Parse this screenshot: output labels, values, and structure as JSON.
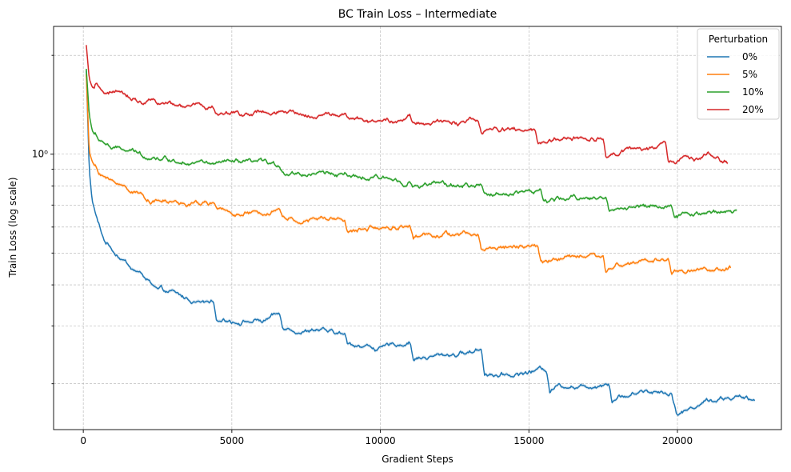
{
  "chart_data": {
    "type": "line",
    "title": "BC Train Loss – Intermediate",
    "xlabel": "Gradient Steps",
    "ylabel": "Train Loss (log scale)",
    "yscale": "log",
    "xlim": [
      -1000,
      23500
    ],
    "ylim": [
      0.145,
      2.45
    ],
    "x_ticks": [
      0,
      5000,
      10000,
      15000,
      20000
    ],
    "x_tick_labels": [
      "0",
      "5000",
      "10000",
      "15000",
      "20000"
    ],
    "y_major_ticks": [
      1.0
    ],
    "y_major_tick_labels": [
      "10⁰"
    ],
    "y_minor_ticks": [
      0.2,
      0.3,
      0.4,
      0.5,
      0.6,
      0.7,
      0.8,
      0.9,
      2.0
    ],
    "grid": true,
    "legend": {
      "title": "Perturbation",
      "placement": "top-right",
      "entries": [
        "0%",
        "5%",
        "10%",
        "20%"
      ]
    },
    "series": [
      {
        "name": "0%",
        "color": "#1f77b4",
        "x": [
          100,
          200,
          300,
          500,
          700,
          1000,
          1500,
          2000,
          2300,
          2500,
          3000,
          3500,
          4000,
          4400,
          4500,
          5000,
          5500,
          6000,
          6600,
          6700,
          7000,
          7500,
          8000,
          8800,
          8900,
          9500,
          10000,
          11000,
          11100,
          12000,
          13000,
          13400,
          13500,
          14000,
          15000,
          15600,
          15700,
          16000,
          17000,
          17700,
          17800,
          18000,
          19000,
          19800,
          20000,
          20500,
          21000,
          22000,
          22600
        ],
        "y": [
          1.8,
          0.9,
          0.72,
          0.62,
          0.55,
          0.51,
          0.46,
          0.43,
          0.4,
          0.385,
          0.375,
          0.36,
          0.355,
          0.36,
          0.32,
          0.315,
          0.315,
          0.31,
          0.32,
          0.295,
          0.29,
          0.285,
          0.285,
          0.28,
          0.26,
          0.26,
          0.255,
          0.265,
          0.235,
          0.245,
          0.25,
          0.255,
          0.215,
          0.215,
          0.22,
          0.225,
          0.195,
          0.2,
          0.2,
          0.205,
          0.18,
          0.185,
          0.19,
          0.19,
          0.165,
          0.17,
          0.18,
          0.18,
          0.175
        ],
        "band": 0.012
      },
      {
        "name": "5%",
        "color": "#ff7f0e",
        "x": [
          100,
          200,
          300,
          500,
          800,
          1000,
          1500,
          2000,
          2300,
          2500,
          3000,
          3500,
          4000,
          4400,
          4500,
          5000,
          6000,
          6600,
          6700,
          7000,
          8000,
          8800,
          8900,
          9500,
          10000,
          11000,
          11100,
          12000,
          13000,
          13300,
          13400,
          14000,
          15000,
          15300,
          15400,
          16000,
          17000,
          17500,
          17600,
          18000,
          19000,
          19700,
          19800,
          20000,
          21000,
          21800
        ],
        "y": [
          1.75,
          1.02,
          0.95,
          0.88,
          0.84,
          0.82,
          0.79,
          0.76,
          0.73,
          0.72,
          0.71,
          0.7,
          0.7,
          0.7,
          0.665,
          0.66,
          0.65,
          0.66,
          0.62,
          0.615,
          0.62,
          0.625,
          0.57,
          0.585,
          0.59,
          0.6,
          0.55,
          0.56,
          0.56,
          0.56,
          0.505,
          0.52,
          0.525,
          0.525,
          0.47,
          0.49,
          0.5,
          0.505,
          0.44,
          0.465,
          0.47,
          0.47,
          0.42,
          0.44,
          0.44,
          0.44
        ],
        "band": 0.012
      },
      {
        "name": "10%",
        "color": "#2ca02c",
        "x": [
          100,
          200,
          300,
          500,
          800,
          1000,
          1500,
          2000,
          2500,
          3000,
          4000,
          4500,
          5000,
          6000,
          6600,
          6800,
          7500,
          8500,
          8800,
          9000,
          10000,
          11000,
          11100,
          12000,
          13000,
          13400,
          13500,
          14000,
          15000,
          15400,
          15500,
          16000,
          17000,
          17600,
          17700,
          18000,
          19000,
          19800,
          19900,
          20500,
          21000,
          22000
        ],
        "y": [
          1.82,
          1.32,
          1.18,
          1.1,
          1.07,
          1.04,
          1.02,
          0.99,
          0.98,
          0.96,
          0.94,
          0.92,
          0.93,
          0.92,
          0.9,
          0.87,
          0.86,
          0.87,
          0.88,
          0.84,
          0.84,
          0.84,
          0.8,
          0.81,
          0.8,
          0.805,
          0.76,
          0.77,
          0.78,
          0.78,
          0.72,
          0.73,
          0.74,
          0.74,
          0.67,
          0.69,
          0.7,
          0.71,
          0.635,
          0.66,
          0.67,
          0.685
        ],
        "band": 0.01
      },
      {
        "name": "20%",
        "color": "#d62728",
        "x": [
          100,
          200,
          300,
          500,
          800,
          1000,
          1500,
          2000,
          2400,
          2500,
          3000,
          4000,
          4400,
          4500,
          5000,
          6000,
          7000,
          8000,
          8800,
          9000,
          10000,
          11000,
          11100,
          12000,
          13000,
          13300,
          13400,
          14000,
          15000,
          15200,
          15300,
          16000,
          17000,
          17500,
          17600,
          18000,
          19000,
          19600,
          19700,
          20000,
          21000,
          21700
        ],
        "y": [
          2.15,
          1.7,
          1.6,
          1.57,
          1.53,
          1.52,
          1.48,
          1.45,
          1.45,
          1.4,
          1.4,
          1.39,
          1.39,
          1.34,
          1.34,
          1.34,
          1.32,
          1.32,
          1.32,
          1.28,
          1.27,
          1.28,
          1.22,
          1.24,
          1.25,
          1.24,
          1.16,
          1.17,
          1.2,
          1.2,
          1.09,
          1.13,
          1.14,
          1.14,
          1.01,
          1.04,
          1.06,
          1.07,
          0.92,
          0.95,
          0.99,
          0.96
        ],
        "band": 0.01
      }
    ]
  }
}
